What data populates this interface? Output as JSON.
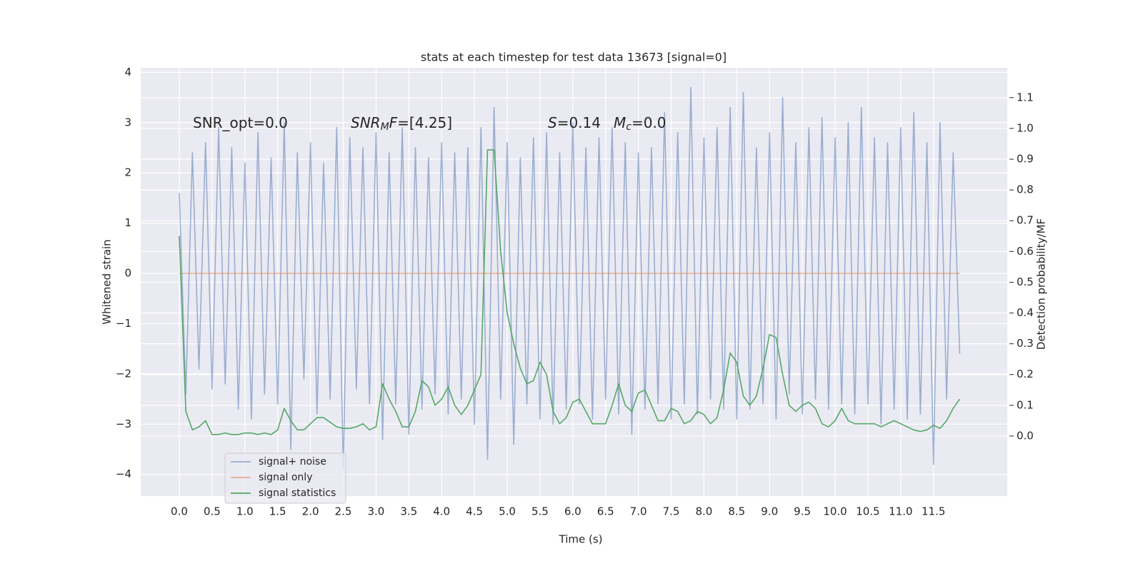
{
  "chart_data": {
    "type": "line",
    "title": "stats at each timestep for test data 13673 [signal=0]",
    "x_label": "Time (s)",
    "y_label": "Whitened strain",
    "y2_label": "Detection probability/MF",
    "annotations": [
      [
        {
          "text": "SNR_opt=0.0"
        }
      ],
      [
        {
          "text": "SNR",
          "italic": true
        },
        {
          "text": "M",
          "italic": true,
          "sub": true
        },
        {
          "text": "F",
          "italic": true
        },
        {
          "text": "=[4.25]"
        }
      ],
      [
        {
          "text": "S",
          "italic": true
        },
        {
          "text": "=0.14"
        }
      ],
      [
        {
          "text": "M",
          "italic": true
        },
        {
          "text": "c",
          "italic": true,
          "sub": true
        },
        {
          "text": "=0.0"
        }
      ]
    ],
    "x": [
      0,
      0.1,
      0.2,
      0.3,
      0.4,
      0.5,
      0.6,
      0.7,
      0.8,
      0.9,
      1,
      1.1,
      1.2,
      1.3,
      1.4,
      1.5,
      1.6,
      1.7,
      1.8,
      1.9,
      2,
      2.1,
      2.2,
      2.3,
      2.4,
      2.5,
      2.6,
      2.7,
      2.8,
      2.9,
      3,
      3.1,
      3.2,
      3.3,
      3.4,
      3.5,
      3.6,
      3.7,
      3.8,
      3.9,
      4,
      4.1,
      4.2,
      4.3,
      4.4,
      4.5,
      4.6,
      4.7,
      4.8,
      4.9,
      5,
      5.1,
      5.2,
      5.3,
      5.4,
      5.5,
      5.6,
      5.7,
      5.8,
      5.9,
      6,
      6.1,
      6.2,
      6.3,
      6.4,
      6.5,
      6.6,
      6.7,
      6.8,
      6.9,
      7,
      7.1,
      7.2,
      7.3,
      7.4,
      7.5,
      7.6,
      7.7,
      7.8,
      7.9,
      8,
      8.1,
      8.2,
      8.3,
      8.4,
      8.5,
      8.6,
      8.7,
      8.8,
      8.9,
      9,
      9.1,
      9.2,
      9.3,
      9.4,
      9.5,
      9.6,
      9.7,
      9.8,
      9.9,
      10,
      10.1,
      10.2,
      10.3,
      10.4,
      10.5,
      10.6,
      10.7,
      10.8,
      10.9,
      11,
      11.1,
      11.2,
      11.3,
      11.4,
      11.5,
      11.6,
      11.7,
      11.8,
      11.9
    ],
    "series": [
      {
        "name": "signal+ noise",
        "color": "#4c72b0",
        "opacity": 0.5,
        "axis": "y",
        "values": [
          1.6,
          -2.4,
          2.4,
          -1.9,
          2.6,
          -2.3,
          2.9,
          -2.2,
          2.5,
          -2.7,
          2.2,
          -2.9,
          2.8,
          -2.4,
          2.3,
          -2.6,
          3.0,
          -3.5,
          2.4,
          -2.1,
          2.6,
          -2.8,
          2.2,
          -2.5,
          2.9,
          -3.9,
          2.7,
          -2.3,
          2.5,
          -2.6,
          2.8,
          -3.3,
          2.4,
          -2.6,
          2.9,
          -3.2,
          2.5,
          -2.7,
          2.3,
          -2.4,
          2.6,
          -2.8,
          2.4,
          -2.5,
          2.5,
          -3.0,
          2.9,
          -3.7,
          3.3,
          -2.5,
          2.6,
          -3.4,
          2.3,
          -2.6,
          2.7,
          -2.9,
          2.8,
          -3.0,
          2.4,
          -2.7,
          3.0,
          -2.6,
          2.5,
          -2.9,
          2.7,
          -2.5,
          2.9,
          -2.8,
          2.6,
          -3.2,
          2.4,
          -2.7,
          2.5,
          -2.6,
          3.2,
          -2.9,
          2.8,
          -2.6,
          3.7,
          -2.8,
          2.7,
          -2.5,
          2.9,
          -2.7,
          3.3,
          -2.9,
          3.6,
          -2.7,
          2.5,
          -2.6,
          2.8,
          -2.9,
          3.5,
          -2.4,
          2.6,
          -2.8,
          2.9,
          -2.5,
          3.1,
          -2.7,
          2.7,
          -2.6,
          3.0,
          -2.8,
          3.3,
          -2.6,
          2.7,
          -3.0,
          2.6,
          -2.7,
          2.9,
          -2.9,
          3.2,
          -2.8,
          2.6,
          -3.8,
          3.0,
          -2.5,
          2.4,
          -1.6
        ]
      },
      {
        "name": "signal only",
        "color": "#dd8452",
        "opacity": 0.6,
        "axis": "y",
        "values": [
          0,
          0,
          0,
          0,
          0,
          0,
          0,
          0,
          0,
          0,
          0,
          0,
          0,
          0,
          0,
          0,
          0,
          0,
          0,
          0,
          0,
          0,
          0,
          0,
          0,
          0,
          0,
          0,
          0,
          0,
          0,
          0,
          0,
          0,
          0,
          0,
          0,
          0,
          0,
          0,
          0,
          0,
          0,
          0,
          0,
          0,
          0,
          0,
          0,
          0,
          0,
          0,
          0,
          0,
          0,
          0,
          0,
          0,
          0,
          0,
          0,
          0,
          0,
          0,
          0,
          0,
          0,
          0,
          0,
          0,
          0,
          0,
          0,
          0,
          0,
          0,
          0,
          0,
          0,
          0,
          0,
          0,
          0,
          0,
          0,
          0,
          0,
          0,
          0,
          0,
          0,
          0,
          0,
          0,
          0,
          0,
          0,
          0,
          0,
          0,
          0,
          0,
          0,
          0,
          0,
          0,
          0,
          0,
          0,
          0,
          0,
          0,
          0,
          0,
          0,
          0,
          0,
          0,
          0,
          0
        ]
      },
      {
        "name": "signal statistics",
        "color": "#55a868",
        "opacity": 1,
        "axis": "y2",
        "values": [
          0.65,
          0.08,
          0.02,
          0.03,
          0.05,
          0.005,
          0.005,
          0.01,
          0.005,
          0.005,
          0.01,
          0.01,
          0.005,
          0.01,
          0.005,
          0.02,
          0.09,
          0.05,
          0.02,
          0.02,
          0.04,
          0.06,
          0.06,
          0.045,
          0.03,
          0.025,
          0.025,
          0.03,
          0.04,
          0.02,
          0.03,
          0.17,
          0.12,
          0.08,
          0.03,
          0.03,
          0.08,
          0.18,
          0.16,
          0.1,
          0.12,
          0.16,
          0.1,
          0.07,
          0.1,
          0.15,
          0.2,
          0.93,
          0.93,
          0.6,
          0.4,
          0.3,
          0.22,
          0.17,
          0.18,
          0.24,
          0.2,
          0.08,
          0.04,
          0.06,
          0.11,
          0.12,
          0.08,
          0.04,
          0.04,
          0.04,
          0.1,
          0.17,
          0.1,
          0.08,
          0.14,
          0.15,
          0.1,
          0.05,
          0.05,
          0.09,
          0.08,
          0.04,
          0.05,
          0.08,
          0.07,
          0.04,
          0.06,
          0.15,
          0.27,
          0.24,
          0.13,
          0.1,
          0.13,
          0.22,
          0.33,
          0.32,
          0.2,
          0.1,
          0.08,
          0.1,
          0.11,
          0.09,
          0.04,
          0.03,
          0.05,
          0.09,
          0.05,
          0.04,
          0.04,
          0.04,
          0.04,
          0.03,
          0.04,
          0.05,
          0.04,
          0.03,
          0.02,
          0.015,
          0.02,
          0.035,
          0.025,
          0.05,
          0.09,
          0.12
        ]
      }
    ],
    "xlim": [
      -0.588,
      12.625
    ],
    "ylim": [
      -4.43,
      4.09
    ],
    "y2lim": [
      -0.195,
      1.197
    ],
    "xticks": [
      {
        "value": 0,
        "label": "0.0"
      },
      0.5,
      {
        "value": 1,
        "label": "1.0"
      },
      1.5,
      {
        "value": 2,
        "label": "2.0"
      },
      2.5,
      {
        "value": 3,
        "label": "3.0"
      },
      3.5,
      {
        "value": 4,
        "label": "4.0"
      },
      4.5,
      {
        "value": 5,
        "label": "5.0"
      },
      5.5,
      {
        "value": 6,
        "label": "6.0"
      },
      6.5,
      {
        "value": 7,
        "label": "7.0"
      },
      7.5,
      {
        "value": 8,
        "label": "8.0"
      },
      8.5,
      {
        "value": 9,
        "label": "9.0"
      },
      9.5,
      {
        "value": 10,
        "label": "10.0"
      },
      10.5,
      {
        "value": 11,
        "label": "11.0"
      },
      11.5
    ],
    "yticks": [
      {
        "value": -4,
        "label": "−4"
      },
      {
        "value": -3,
        "label": "−3"
      },
      {
        "value": -2,
        "label": "−2"
      },
      {
        "value": -1,
        "label": "−1"
      },
      0,
      1,
      2,
      3,
      4
    ],
    "y2ticks": [
      {
        "value": 0,
        "label": "0.0"
      },
      0.1,
      0.2,
      0.3,
      0.4,
      0.5,
      0.6,
      0.7,
      0.8,
      0.9,
      {
        "value": 1,
        "label": "1.0"
      },
      1.1
    ],
    "grid": true,
    "legend": "lower left",
    "background": "#eaeaf2"
  }
}
